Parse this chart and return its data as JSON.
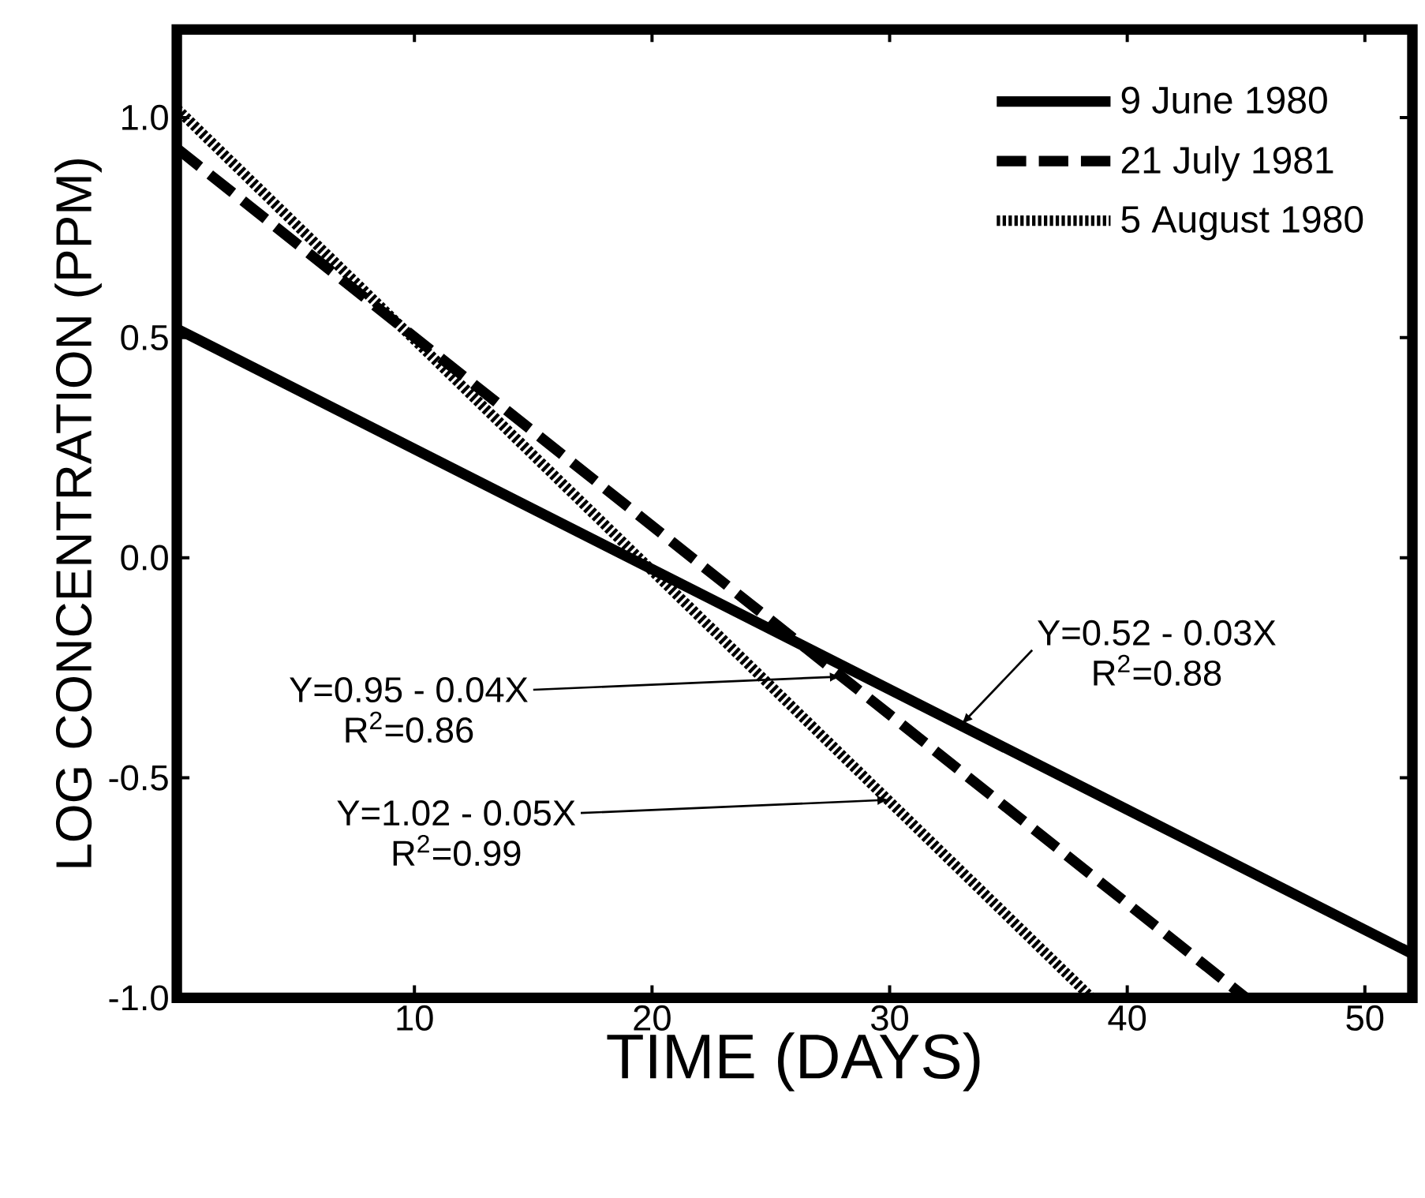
{
  "chart_data": {
    "type": "line",
    "xlabel": "TIME (DAYS)",
    "ylabel": "LOG CONCENTRATION (PPM)",
    "xlim": [
      0,
      52
    ],
    "ylim": [
      -1.0,
      1.2
    ],
    "xticks": [
      10,
      20,
      30,
      40,
      50
    ],
    "yticks": [
      {
        "value": -1.0,
        "label": "-1.0"
      },
      {
        "value": -0.5,
        "label": "-0.5"
      },
      {
        "value": 0,
        "label": "0.0"
      },
      {
        "value": 0.5,
        "label": "0.5"
      },
      {
        "value": 1.0,
        "label": "1.0"
      }
    ],
    "series": [
      {
        "name": "9 June 1980",
        "color": "#000000",
        "line_style": "solid",
        "x": [
          0,
          52
        ],
        "values": [
          0.52,
          -0.9
        ]
      },
      {
        "name": "21 July 1981",
        "color": "#000000",
        "line_style": "dashed",
        "x": [
          0,
          45
        ],
        "values": [
          0.93,
          -1.0
        ]
      },
      {
        "name": "5 August 1980",
        "color": "#000000",
        "line_style": "dotted",
        "x": [
          0,
          38.5
        ],
        "values": [
          1.02,
          -1.0
        ]
      }
    ],
    "marker": "none",
    "grid": false,
    "legend": "top right",
    "annotations": [
      {
        "text": "Y=0.52 - 0.03X",
        "x": 33,
        "y": -0.38
      },
      "R$^{2}$=0.88",
      {
        "text": "Y=0.95 - 0.04X",
        "x": 28,
        "y": -0.27
      },
      "R$^{2}$=0.86",
      {
        "text": "Y=1.02 - 0.05X",
        "x": 30,
        "y": -0.55
      },
      "R$^{2}$=0.99"
    ]
  }
}
